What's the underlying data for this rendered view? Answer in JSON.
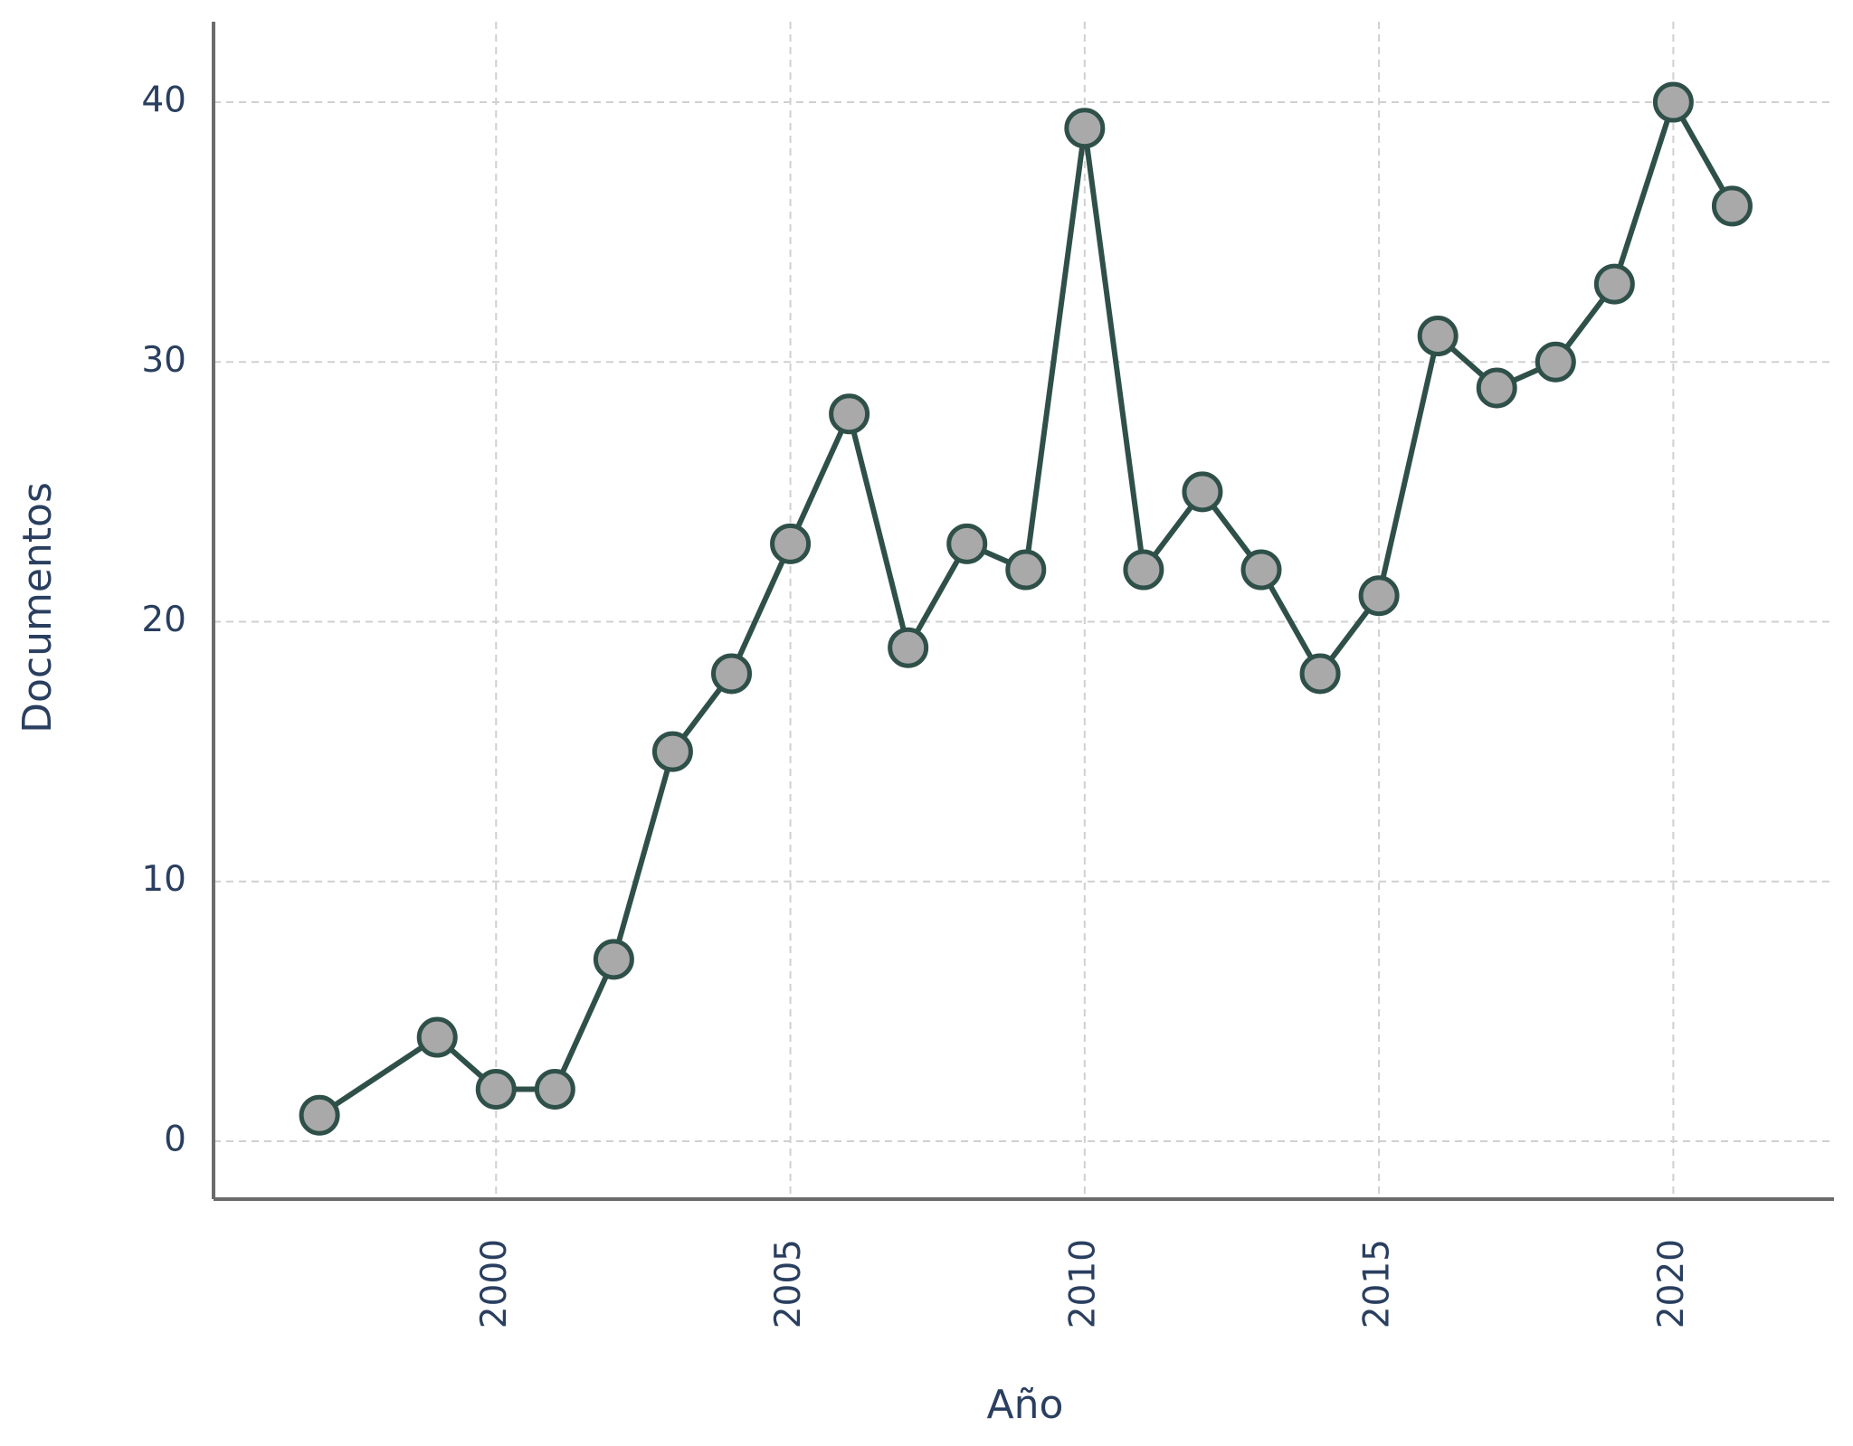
{
  "chart_data": {
    "type": "line",
    "x_label": "Año",
    "y_label": "Documentos",
    "x": [
      1997,
      1999,
      2000,
      2001,
      2002,
      2003,
      2004,
      2005,
      2006,
      2007,
      2008,
      2009,
      2010,
      2011,
      2012,
      2013,
      2014,
      2015,
      2016,
      2017,
      2018,
      2019,
      2020,
      2021
    ],
    "values": [
      1,
      4,
      2,
      2,
      7,
      15,
      18,
      23,
      28,
      19,
      23,
      22,
      39,
      22,
      25,
      22,
      18,
      21,
      31,
      29,
      30,
      33,
      40,
      36
    ],
    "color": "#2f5049",
    "marker_color": "#a9a9a9",
    "xlim": [
      1995.2,
      2022.73
    ],
    "xticks": [
      2000,
      2005,
      2010,
      2015,
      2020
    ],
    "ylim": [
      -2.23,
      43.1
    ],
    "yticks": [
      0,
      10,
      20,
      30,
      40
    ],
    "grid": true
  }
}
